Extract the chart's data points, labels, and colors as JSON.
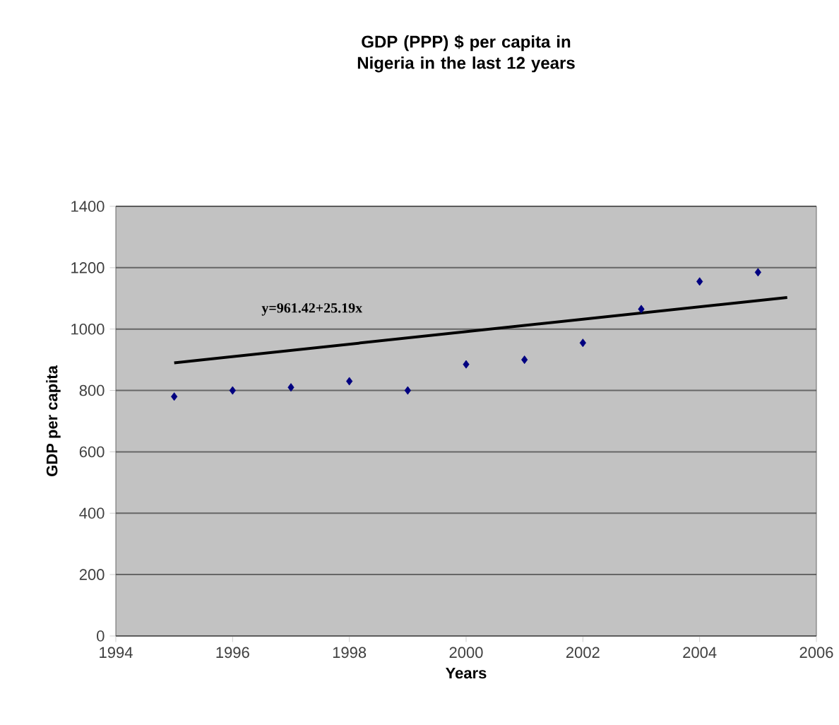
{
  "chart_data": {
    "type": "scatter",
    "title": "GDP (PPP) $ per capita in Nigeria in the last 12 years",
    "xlabel": "Years",
    "ylabel": "GDP per capita",
    "x": [
      1995,
      1996,
      1997,
      1998,
      1999,
      2000,
      2001,
      2002,
      2003,
      2004,
      2005
    ],
    "series": [
      {
        "color": "#000080",
        "values": [
          780,
          800,
          810,
          830,
          800,
          885,
          900,
          955,
          1065,
          1155,
          1185
        ]
      },
      {
        "type": "line",
        "marker": "none",
        "color": "#000000",
        "x": [
          1995,
          2005.5
        ],
        "values": [
          890,
          1103
        ]
      }
    ],
    "annotations": [
      "y=961.42+25.19x"
    ],
    "xlim": [
      1994,
      2006
    ],
    "xticks": [
      1994,
      1996,
      1998,
      2000,
      2002,
      2004,
      2006
    ],
    "ylim": [
      0,
      1400
    ],
    "yticks": [
      0,
      200,
      400,
      600,
      800,
      1000,
      1200,
      1400
    ],
    "grid": "y",
    "marker": "diamond"
  }
}
